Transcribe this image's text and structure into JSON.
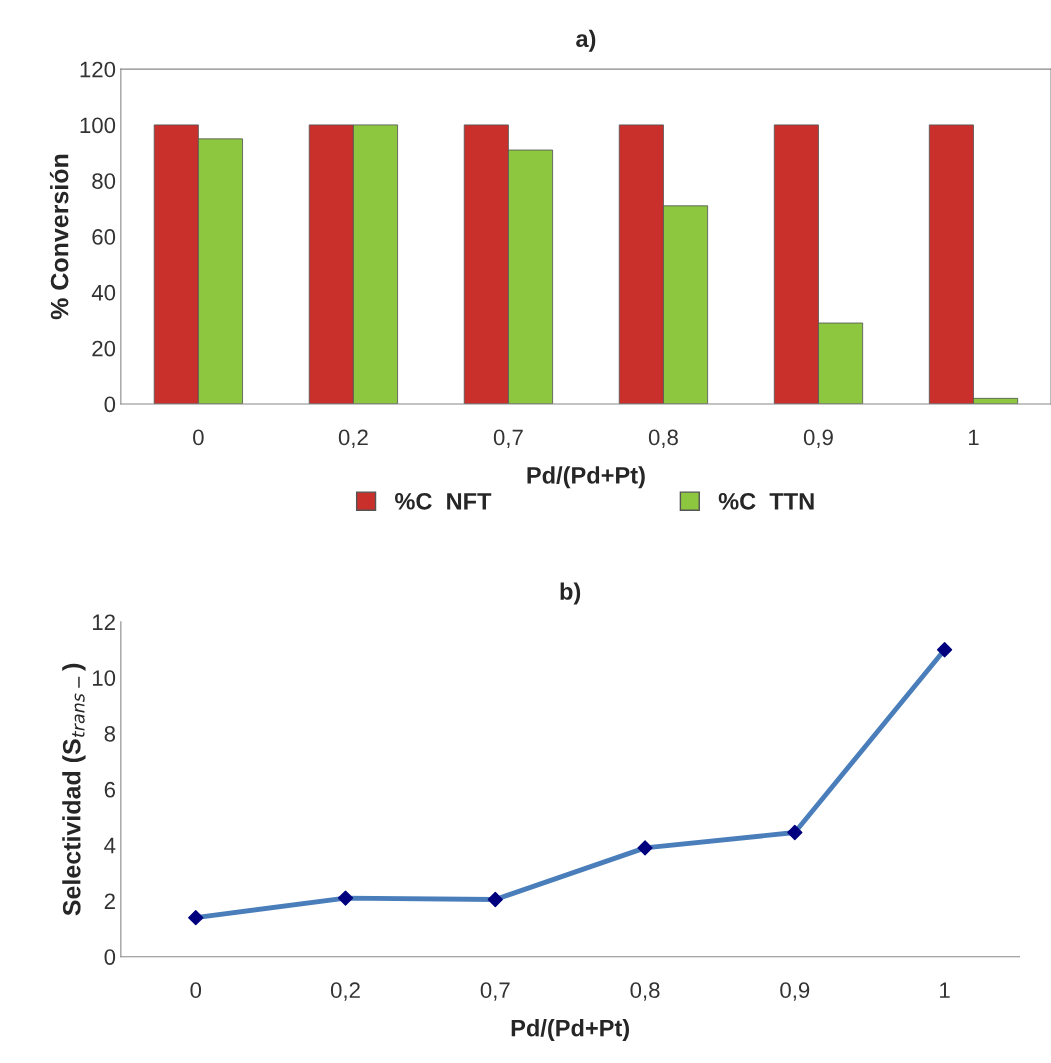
{
  "chart_data": [
    {
      "type": "bar",
      "title": "a)",
      "xlabel": "Pd/(Pd+Pt)",
      "ylabel": "% Conversión",
      "categories": [
        "0",
        "0,2",
        "0,7",
        "0,8",
        "0,9",
        "1"
      ],
      "series": [
        {
          "name": "%C  NFT",
          "color": "#c9302c",
          "values": [
            100,
            100,
            100,
            100,
            100,
            100
          ]
        },
        {
          "name": "%C  TTN",
          "color": "#8dc63f",
          "values": [
            95,
            100,
            91,
            71,
            29,
            2
          ]
        }
      ],
      "ylim": [
        0,
        120
      ],
      "yticks": [
        0,
        20,
        40,
        60,
        80,
        100,
        120
      ],
      "grid": false,
      "legend": "bottom"
    },
    {
      "type": "line",
      "title": "b)",
      "xlabel": "Pd/(Pd+Pt)",
      "ylabel": "Selectividad (S$_{trans−}$)",
      "categories": [
        "0",
        "0,2",
        "0,7",
        "0,8",
        "0,9",
        "1"
      ],
      "series": [
        {
          "color": "#4a7ebb",
          "values": [
            1.4,
            2.1,
            2.05,
            3.9,
            4.45,
            11
          ]
        }
      ],
      "ylim": [
        0,
        12
      ],
      "yticks": [
        0,
        2,
        4,
        6,
        8,
        10,
        12
      ],
      "grid": false,
      "marker": "diamond",
      "line_style": "solid"
    }
  ]
}
